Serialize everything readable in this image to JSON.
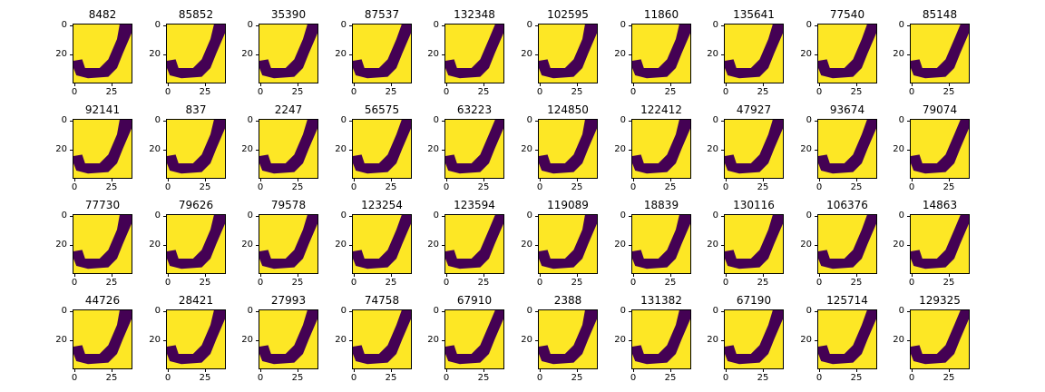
{
  "figure": {
    "background": "#ffffff",
    "colormap": {
      "foreground": "#440154",
      "background": "#fde725"
    },
    "yticks": [
      "0",
      "20"
    ],
    "xticks": [
      "0",
      "25"
    ],
    "titles": [
      [
        "8482",
        "85852",
        "35390",
        "87537",
        "132348",
        "102595",
        "11860",
        "135641",
        "77540",
        "85148"
      ],
      [
        "92141",
        "837",
        "2247",
        "56575",
        "63223",
        "124850",
        "122412",
        "47927",
        "93674",
        "79074"
      ],
      [
        "77730",
        "79626",
        "79578",
        "123254",
        "123594",
        "119089",
        "18839",
        "130116",
        "106376",
        "14863"
      ],
      [
        "44726",
        "28421",
        "27993",
        "74758",
        "67910",
        "2388",
        "131382",
        "67190",
        "125714",
        "129325"
      ]
    ]
  }
}
